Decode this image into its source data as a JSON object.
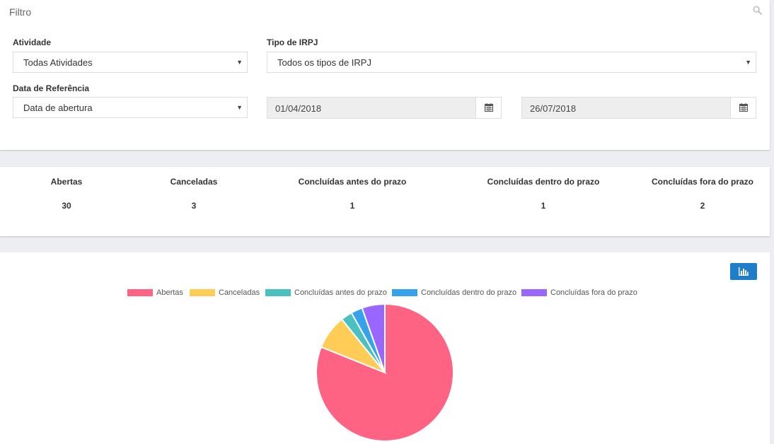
{
  "filter": {
    "title": "Filtro",
    "search_icon": "search-icon",
    "atividade": {
      "label": "Atividade",
      "value": "Todas Atividades"
    },
    "tipo_irpj": {
      "label": "Tipo de IRPJ",
      "value": "Todos os tipos de IRPJ"
    },
    "data_referencia": {
      "label": "Data de Referência",
      "value": "Data de abertura"
    },
    "date_start": "01/04/2018",
    "date_end": "26/07/2018",
    "calendar_icon": "calendar-icon"
  },
  "stats": [
    {
      "label": "Abertas",
      "value": "30"
    },
    {
      "label": "Canceladas",
      "value": "3"
    },
    {
      "label": "Concluídas antes do prazo",
      "value": "1"
    },
    {
      "label": "Concluídas dentro do prazo",
      "value": "1"
    },
    {
      "label": "Concluídas fora do prazo",
      "value": "2"
    }
  ],
  "chart_toggle_icon": "bar-chart-icon",
  "chart_data": {
    "type": "pie",
    "categories": [
      "Abertas",
      "Canceladas",
      "Concluídas antes do prazo",
      "Concluídas dentro do prazo",
      "Concluídas fora do prazo"
    ],
    "values": [
      30,
      3,
      1,
      1,
      2
    ],
    "colors": [
      "#ff6384",
      "#ffcd56",
      "#4bc0c0",
      "#36a2eb",
      "#9966ff"
    ],
    "legend_position": "top"
  }
}
